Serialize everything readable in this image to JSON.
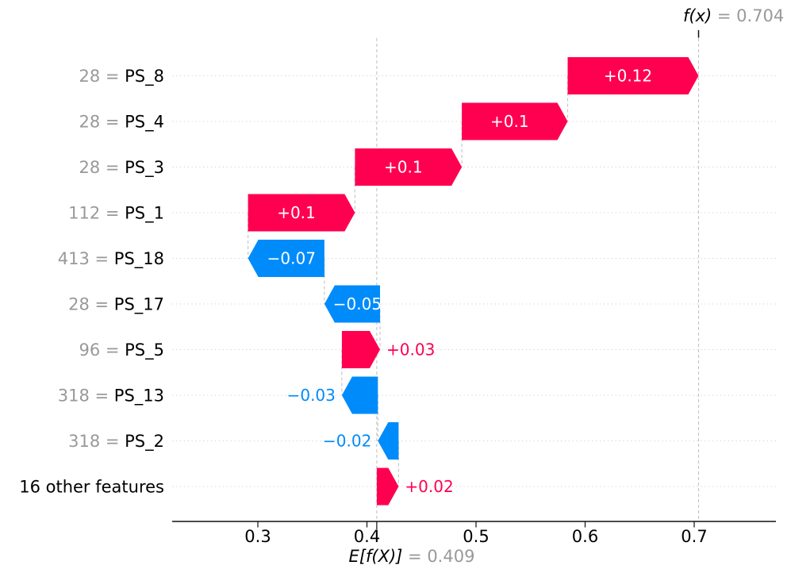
{
  "chart_data": {
    "type": "waterfall",
    "style": "shap-waterfall",
    "eq_sep": " = ",
    "fx": {
      "label": "f(x)",
      "value_text": " = 0.704",
      "value": 0.704
    },
    "expected": {
      "label": "E[f(X)]",
      "value_text": " = 0.409",
      "value": 0.409
    },
    "xlim": [
      0.2215,
      0.775
    ],
    "x_ticks": [
      {
        "value": 0.3,
        "label": "0.3"
      },
      {
        "value": 0.4,
        "label": "0.4"
      },
      {
        "value": 0.5,
        "label": "0.5"
      },
      {
        "value": 0.6,
        "label": "0.6"
      },
      {
        "value": 0.7,
        "label": "0.7"
      }
    ],
    "grid": "horizontal-dotted",
    "legend": "none",
    "colors": {
      "positive": "#ff0051",
      "negative": "#008bfb",
      "gray_text": "#999999",
      "black_text": "#000000",
      "gridline": "#d2d2d2",
      "connector": "#c3c3c3",
      "axis": "#111111"
    },
    "rows": [
      {
        "value_prefix": "28",
        "feature": "PS_8",
        "shap_label": "+0.12",
        "start": 0.584,
        "end": 0.704,
        "sign": "positive",
        "label_placement": "inside"
      },
      {
        "value_prefix": "28",
        "feature": "PS_4",
        "shap_label": "+0.1",
        "start": 0.487,
        "end": 0.584,
        "sign": "positive",
        "label_placement": "inside"
      },
      {
        "value_prefix": "28",
        "feature": "PS_3",
        "shap_label": "+0.1",
        "start": 0.389,
        "end": 0.487,
        "sign": "positive",
        "label_placement": "inside"
      },
      {
        "value_prefix": "112",
        "feature": "PS_1",
        "shap_label": "+0.1",
        "start": 0.291,
        "end": 0.389,
        "sign": "positive",
        "label_placement": "inside"
      },
      {
        "value_prefix": "413",
        "feature": "PS_18",
        "shap_label": "−0.07",
        "start": 0.361,
        "end": 0.291,
        "sign": "negative",
        "label_placement": "inside"
      },
      {
        "value_prefix": "28",
        "feature": "PS_17",
        "shap_label": "−0.05",
        "start": 0.412,
        "end": 0.361,
        "sign": "negative",
        "label_placement": "inside"
      },
      {
        "value_prefix": "96",
        "feature": "PS_5",
        "shap_label": "+0.03",
        "start": 0.377,
        "end": 0.412,
        "sign": "positive",
        "label_placement": "outside"
      },
      {
        "value_prefix": "318",
        "feature": "PS_13",
        "shap_label": "−0.03",
        "start": 0.41,
        "end": 0.377,
        "sign": "negative",
        "label_placement": "outside"
      },
      {
        "value_prefix": "318",
        "feature": "PS_2",
        "shap_label": "−0.02",
        "start": 0.429,
        "end": 0.41,
        "sign": "negative",
        "label_placement": "outside"
      },
      {
        "value_prefix": null,
        "feature": "16 other features",
        "shap_label": "+0.02",
        "start": 0.409,
        "end": 0.429,
        "sign": "positive",
        "label_placement": "outside"
      }
    ]
  }
}
